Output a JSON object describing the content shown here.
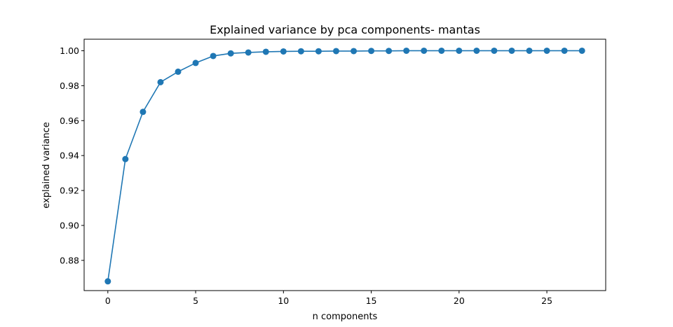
{
  "chart_data": {
    "type": "line",
    "title": "Explained variance by pca components- mantas",
    "xlabel": "n components",
    "ylabel": "explained variance",
    "xlim": [
      -1.35,
      28.35
    ],
    "ylim": [
      0.8627,
      1.0066
    ],
    "xticks": [
      0,
      5,
      10,
      15,
      20,
      25
    ],
    "yticks": [
      0.88,
      0.9,
      0.92,
      0.94,
      0.96,
      0.98,
      1.0
    ],
    "xtick_labels": [
      "0",
      "5",
      "10",
      "15",
      "20",
      "25"
    ],
    "ytick_labels": [
      "0.88",
      "0.90",
      "0.92",
      "0.94",
      "0.96",
      "0.98",
      "1.00"
    ],
    "grid": false,
    "marker": "circle",
    "color": "#1f77b4",
    "series": [
      {
        "x": [
          0,
          1,
          2,
          3,
          4,
          5,
          6,
          7,
          8,
          9,
          10,
          11,
          12,
          13,
          14,
          15,
          16,
          17,
          18,
          19,
          20,
          21,
          22,
          23,
          24,
          25,
          26,
          27
        ],
        "values": [
          0.868,
          0.938,
          0.965,
          0.982,
          0.988,
          0.993,
          0.997,
          0.9985,
          0.999,
          0.9994,
          0.9996,
          0.9997,
          0.9997,
          0.9998,
          0.9998,
          0.9999,
          0.9999,
          1.0,
          1.0,
          1.0,
          1.0,
          1.0,
          1.0,
          1.0,
          1.0,
          1.0,
          1.0,
          1.0
        ]
      }
    ]
  }
}
